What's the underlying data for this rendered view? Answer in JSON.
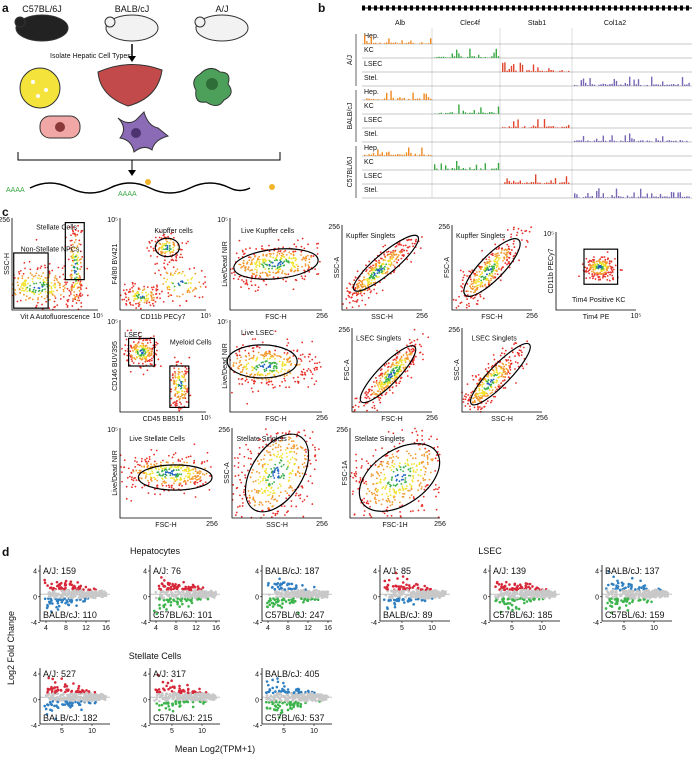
{
  "panel_a": {
    "letter": "a",
    "strains": [
      "C57BL/6J",
      "BALB/cJ",
      "A/J"
    ],
    "caption": "Isolate Hepatic Cell Types",
    "polya": [
      "AAAA",
      "AAAA"
    ]
  },
  "panel_b": {
    "letter": "b",
    "genes": [
      "Alb",
      "Clec4f",
      "Stab1",
      "Col1a2"
    ],
    "track_colors": [
      "#f08a24",
      "#3aa845",
      "#e0462e",
      "#7a67b5"
    ],
    "groups": [
      {
        "strain": "A/J",
        "tracks": [
          "Hep.",
          "KC",
          "LSEC",
          "Stel."
        ]
      },
      {
        "strain": "BALB/cJ",
        "tracks": [
          "Hep.",
          "KC",
          "LSEC",
          "Stel."
        ]
      },
      {
        "strain": "C57BL/6J",
        "tracks": [
          "Hep.",
          "KC",
          "LSEC",
          "Stel."
        ]
      }
    ]
  },
  "panel_c": {
    "letter": "c",
    "plots": [
      {
        "labels": [
          "Stellate Cells",
          "Non-Stellate NPCs."
        ],
        "x_label": "Vit A Autofluorescence",
        "y_label": "SSC-H",
        "x_max": "10⁵",
        "y_max": "256"
      },
      {
        "labels": [
          "Kupffer cells"
        ],
        "x_label": "CD11b PECy7",
        "y_label": "F4/80 BV421",
        "x_max": "10⁵",
        "y_max": "10⁵"
      },
      {
        "labels": [
          "Live Kupffer cells"
        ],
        "x_label": "FSC-H",
        "y_label": "Live/Dead NIR",
        "x_max": "256",
        "y_max": "10⁵"
      },
      {
        "labels": [
          "Kupffer Singlets"
        ],
        "x_label": "SSC-H",
        "y_label": "SSC-A",
        "x_max": "256",
        "y_max": "256"
      },
      {
        "labels": [
          "Kupffer Singlets"
        ],
        "x_label": "FSC-H",
        "y_label": "FSC-A",
        "x_max": "256",
        "y_max": "256"
      },
      {
        "labels": [
          "Tim4 Positive KC"
        ],
        "x_label": "Tim4 PE",
        "y_label": "CD11b PECy7",
        "x_max": "10⁵",
        "y_max": "10⁵"
      },
      {
        "labels": [
          "LSEC",
          "Myeloid Cells"
        ],
        "x_label": "CD45 BB515",
        "y_label": "CD146 BUV395",
        "x_max": "10⁵",
        "y_max": "10⁵"
      },
      {
        "labels": [
          "Live LSEC"
        ],
        "x_label": "FSC-H",
        "y_label": "Live/Dead NIR",
        "x_max": "256",
        "y_max": "10⁵"
      },
      {
        "labels": [
          "LSEC Singlets"
        ],
        "x_label": "FSC-H",
        "y_label": "FSC-A",
        "x_max": "256",
        "y_max": "256"
      },
      {
        "labels": [
          "LSEC Singlets"
        ],
        "x_label": "SSC-H",
        "y_label": "SSC-A",
        "x_max": "256",
        "y_max": "256"
      },
      {
        "labels": [
          "Live Stellate Cells"
        ],
        "x_label": "FSC-H",
        "y_label": "Live/Dead NIR",
        "x_max": "256",
        "y_max": "10⁵"
      },
      {
        "labels": [
          "Stellate Singlets"
        ],
        "x_label": "SSC-H",
        "y_label": "SSC-A",
        "x_max": "256",
        "y_max": "256"
      },
      {
        "labels": [
          "Stellate Singlets"
        ],
        "x_label": "FSC-1H",
        "y_label": "FSC-1A",
        "x_max": "256",
        "y_max": "256"
      }
    ]
  },
  "panel_d": {
    "letter": "d",
    "y_label": "Log2 Fold Change",
    "x_label": "Mean Log2(TPM+1)",
    "sections": [
      {
        "title": "Hepatocytes",
        "plots": [
          {
            "top": "A/J: 159",
            "bottom": "BALB/cJ: 110",
            "top_color": "#d62839",
            "bottom_color": "#2f7fc1",
            "x_ticks": [
              "4",
              "8",
              "12",
              "16"
            ],
            "y_ticks": [
              "4",
              "0",
              "-4"
            ]
          },
          {
            "top": "A/J: 76",
            "bottom": "C57BL/6J: 101",
            "top_color": "#d62839",
            "bottom_color": "#3cb44b",
            "x_ticks": [
              "4",
              "8",
              "12",
              "16"
            ],
            "y_ticks": [
              "4",
              "0",
              "-4"
            ]
          },
          {
            "top": "BALB/cJ: 187",
            "bottom": "C57BL/6J: 247",
            "top_color": "#2f7fc1",
            "bottom_color": "#3cb44b",
            "x_ticks": [
              "4",
              "8",
              "12",
              "16"
            ],
            "y_ticks": [
              "4",
              "0",
              "-4"
            ]
          }
        ]
      },
      {
        "title": "LSEC",
        "plots": [
          {
            "top": "A/J: 85",
            "bottom": "BALB/cJ: 89",
            "top_color": "#d62839",
            "bottom_color": "#2f7fc1",
            "x_ticks": [
              "5",
              "10"
            ],
            "y_ticks": [
              "4",
              "0",
              "-4"
            ]
          },
          {
            "top": "A/J: 139",
            "bottom": "C57BL/6J: 185",
            "top_color": "#d62839",
            "bottom_color": "#3cb44b",
            "x_ticks": [
              "5",
              "10"
            ],
            "y_ticks": [
              "4",
              "0",
              "-4"
            ]
          },
          {
            "top": "BALB/cJ: 137",
            "bottom": "C57BL/6J: 159",
            "top_color": "#2f7fc1",
            "bottom_color": "#3cb44b",
            "x_ticks": [
              "5",
              "10"
            ],
            "y_ticks": [
              "4",
              "0",
              "-4"
            ]
          }
        ]
      },
      {
        "title": "Stellate Cells",
        "plots": [
          {
            "top": "A/J: 527",
            "bottom": "BALB/cJ: 182",
            "top_color": "#d62839",
            "bottom_color": "#2f7fc1",
            "x_ticks": [
              "5",
              "10"
            ],
            "y_ticks": [
              "4",
              "0",
              "-4"
            ]
          },
          {
            "top": "A/J: 317",
            "bottom": "C57BL/6J: 215",
            "top_color": "#d62839",
            "bottom_color": "#3cb44b",
            "x_ticks": [
              "5",
              "10"
            ],
            "y_ticks": [
              "4",
              "0",
              "-4"
            ]
          },
          {
            "top": "BALB/cJ: 405",
            "bottom": "C57BL/6J: 537",
            "top_color": "#2f7fc1",
            "bottom_color": "#3cb44b",
            "x_ticks": [
              "5",
              "10"
            ],
            "y_ticks": [
              "4",
              "0",
              "-4"
            ]
          }
        ]
      }
    ]
  }
}
